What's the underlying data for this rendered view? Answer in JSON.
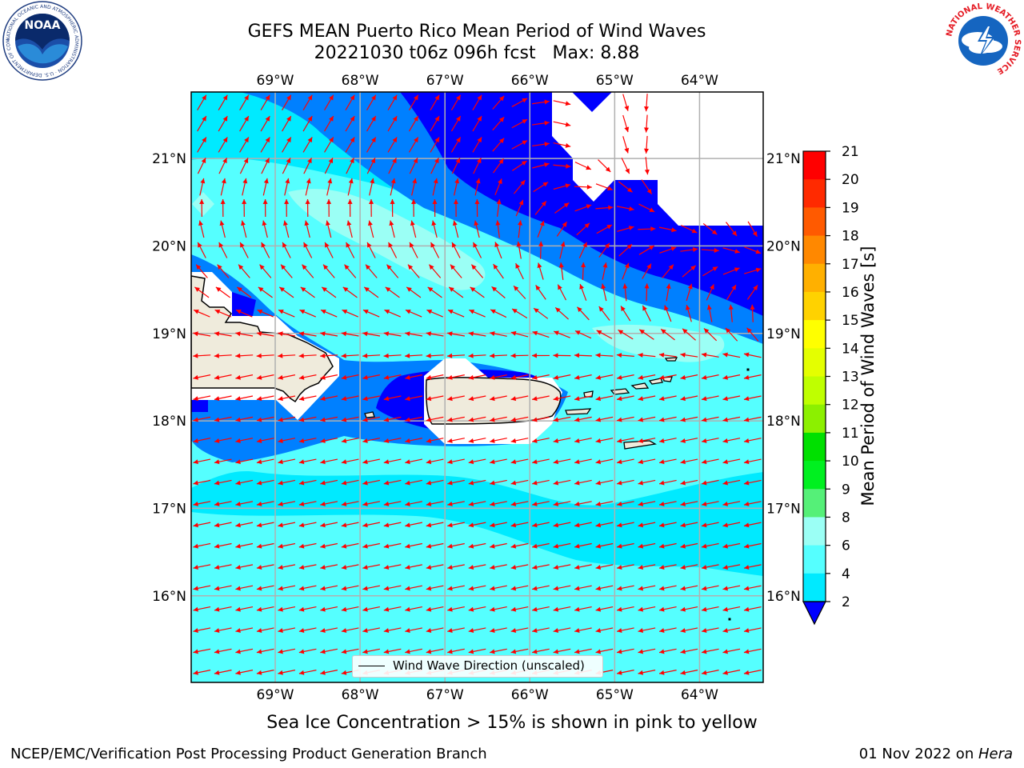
{
  "header": {
    "title_line1": "GEFS MEAN Puerto Rico Mean Period of Wind Waves",
    "title_line2": "20221030 t06z 096h fcst   Max: 8.88"
  },
  "map": {
    "lon_labels": [
      "69°W",
      "68°W",
      "67°W",
      "66°W",
      "65°W",
      "64°W"
    ],
    "lat_labels": [
      "21°N",
      "20°N",
      "19°N",
      "18°N",
      "17°N",
      "16°N"
    ],
    "lon_values": [
      -69,
      -68,
      -67,
      -66,
      -65,
      -64
    ],
    "lat_values": [
      21,
      20,
      19,
      18,
      17,
      16
    ],
    "lon_range": [
      -69.99,
      -63.25
    ],
    "lat_range": [
      15.01,
      21.76
    ],
    "legend_label": "Wind Wave Direction (unscaled)",
    "arrow_color": "#ff0000",
    "land_color": "#efebdc"
  },
  "colorbar": {
    "label": "Mean Period of Wind Waves [s]",
    "levels": [
      "21",
      "20",
      "19",
      "18",
      "17",
      "16",
      "15",
      "14",
      "13",
      "12",
      "11",
      "10",
      "9",
      "8",
      "6",
      "4",
      "2"
    ],
    "colors": [
      "#ff0000",
      "#ff2a00",
      "#ff5a00",
      "#ff8800",
      "#ffb000",
      "#ffd200",
      "#ffff00",
      "#e4ff00",
      "#bfff00",
      "#8cf000",
      "#00e000",
      "#00f020",
      "#55f078",
      "#9bfff5",
      "#55ffff",
      "#00eaff",
      "#0080ff",
      "#0000ff"
    ]
  },
  "footer": {
    "ice_note": "Sea Ice Concentration > 15% is shown in pink to yellow",
    "left": "NCEP/EMC/Verification Post Processing Product Generation Branch",
    "date": "01 Nov 2022 on ",
    "host": "Hera"
  },
  "logos": {
    "noaa": "NOAA",
    "noaa_ring": "NATIONAL OCEANIC AND ATMOSPHERIC ADMINISTRATION · U.S. DEPARTMENT OF COMMERCE",
    "nws_ring": "NATIONAL WEATHER SERVICE"
  }
}
